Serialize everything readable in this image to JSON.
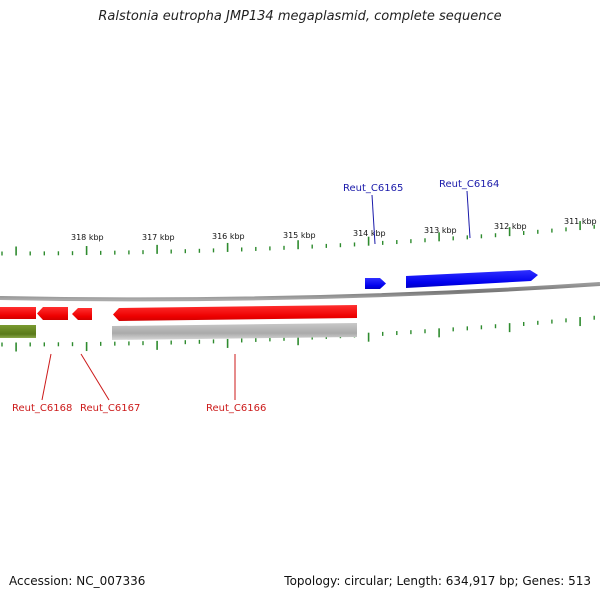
{
  "title": "Ralstonia eutropha JMP134 megaplasmid, complete sequence",
  "accession": "Accession: NC_007336",
  "summary": "Topology: circular; Length: 634,917 bp; Genes: 513",
  "colors": {
    "forward_gene": "#1a1aff",
    "reverse_gene": "#ff1a1a",
    "rna_feature": "#6b8e23",
    "backbone": "#808080",
    "ticks": "#2e8b2e",
    "forward_label": "#1a1aaa",
    "reverse_label": "#cc1a1a",
    "gray_band": "#b4b4b4"
  },
  "ruler": {
    "labels": [
      "318 kbp",
      "317 kbp",
      "316 kbp",
      "315 kbp",
      "314 kbp",
      "313 kbp",
      "312 kbp",
      "311 kbp"
    ]
  },
  "genes": {
    "forward": [
      {
        "name": "Reut_C6165",
        "strand": "+"
      },
      {
        "name": "Reut_C6164",
        "strand": "+"
      }
    ],
    "reverse": [
      {
        "name": "Reut_C6168",
        "strand": "-"
      },
      {
        "name": "Reut_C6167",
        "strand": "-"
      },
      {
        "name": "Reut_C6166",
        "strand": "-"
      }
    ]
  }
}
